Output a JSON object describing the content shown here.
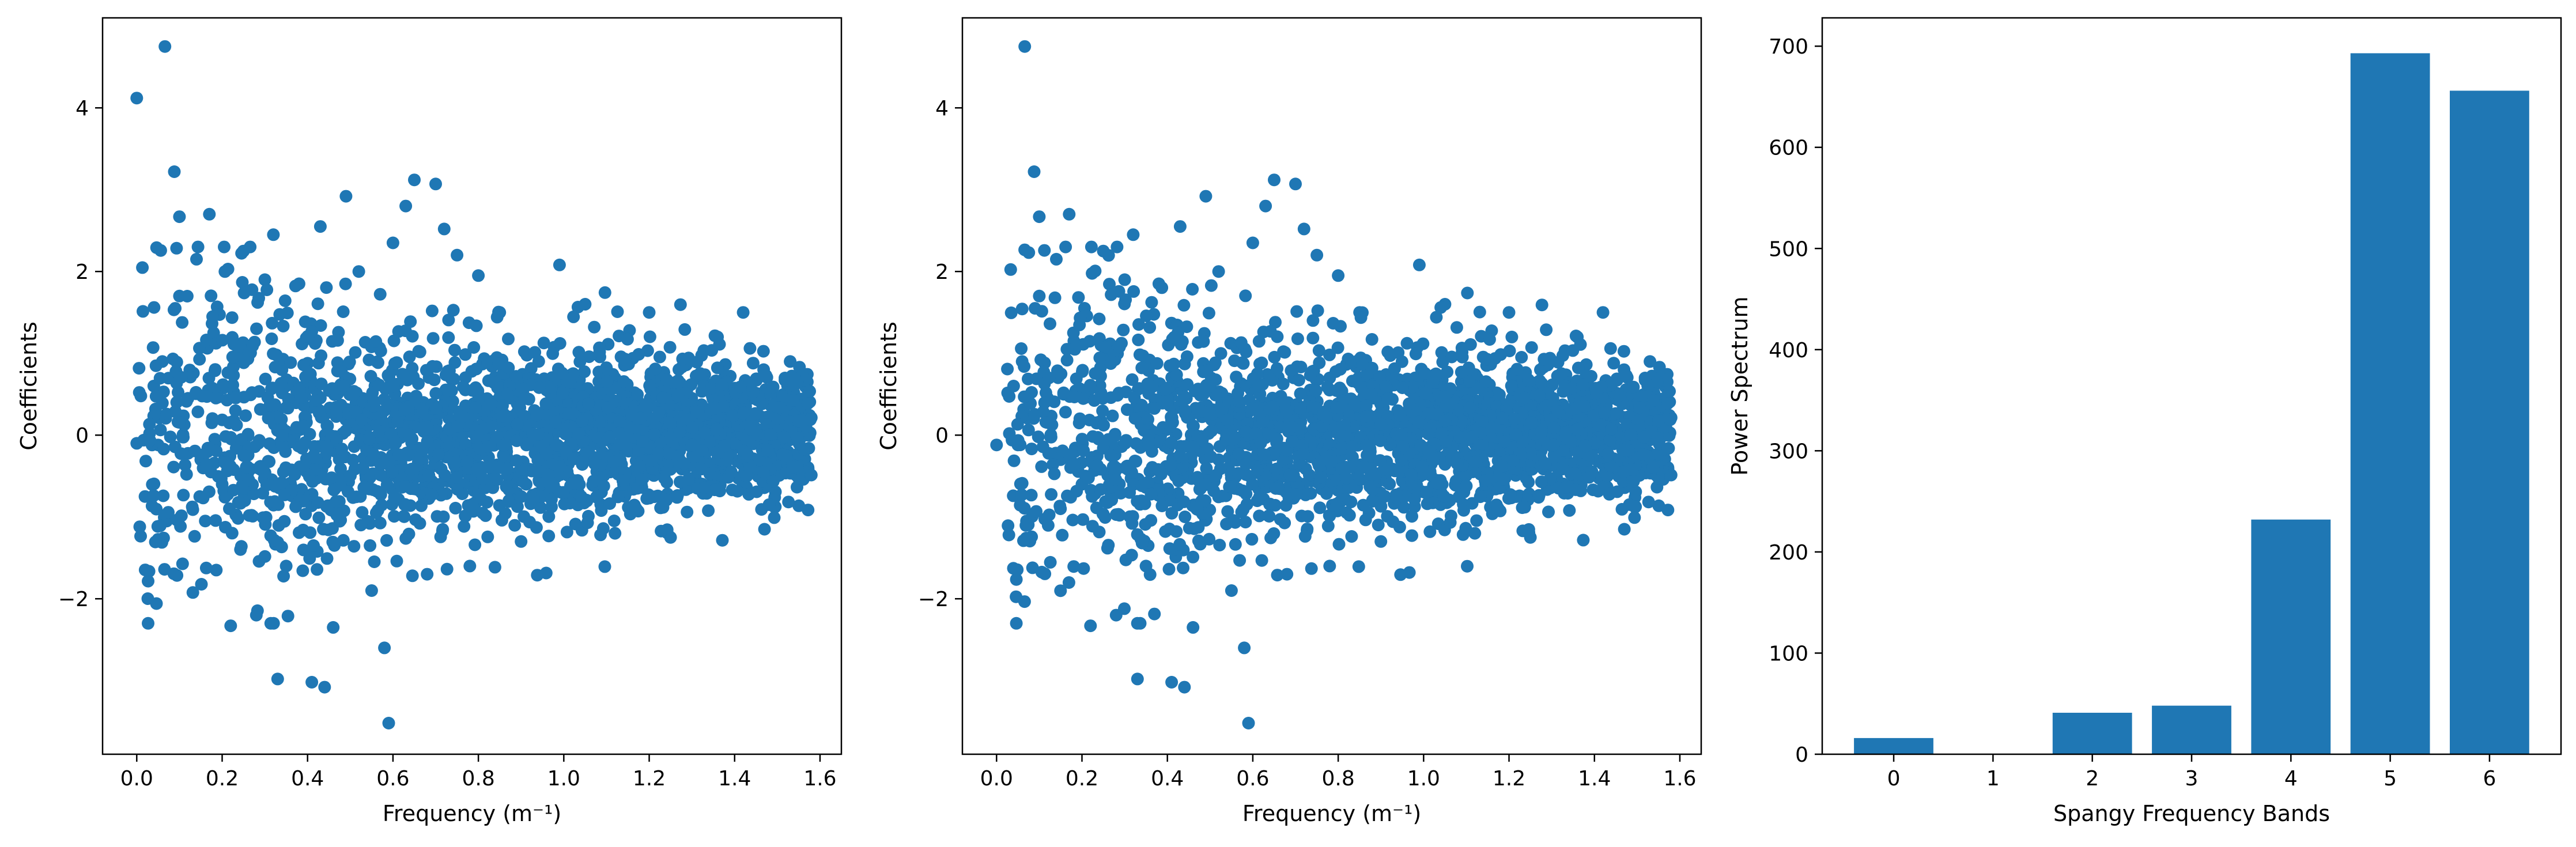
{
  "figure": {
    "background": "#ffffff",
    "marker_color": "#1f77b4",
    "bar_color": "#1f77b4"
  },
  "chart_data": [
    {
      "type": "scatter",
      "xlabel": "Frequency (m⁻¹)",
      "ylabel": "Coefficients",
      "xlim": [
        -0.08,
        1.65
      ],
      "ylim": [
        -3.9,
        5.1
      ],
      "xticks": [
        0.0,
        0.2,
        0.4,
        0.6,
        0.8,
        1.0,
        1.2,
        1.4,
        1.6
      ],
      "xtick_labels": [
        "0.0",
        "0.2",
        "0.4",
        "0.6",
        "0.8",
        "1.0",
        "1.2",
        "1.4",
        "1.6"
      ],
      "yticks": [
        -2,
        0,
        2,
        4
      ],
      "ytick_labels": [
        "−2",
        "0",
        "2",
        "4"
      ],
      "grid": false,
      "points": [
        [
          0.0,
          4.12
        ],
        [
          0.066,
          4.75
        ],
        [
          0.088,
          3.22
        ],
        [
          0.1,
          2.67
        ],
        [
          0.17,
          2.7
        ],
        [
          0.49,
          2.92
        ],
        [
          0.43,
          2.55
        ],
        [
          0.65,
          3.12
        ],
        [
          0.7,
          3.07
        ],
        [
          0.72,
          2.52
        ],
        [
          0.99,
          2.08
        ],
        [
          0.8,
          1.95
        ],
        [
          0.33,
          -2.98
        ],
        [
          0.41,
          -3.02
        ],
        [
          0.44,
          -3.08
        ],
        [
          0.58,
          -2.6
        ],
        [
          0.59,
          -3.52
        ],
        [
          0.22,
          -2.33
        ],
        [
          0.0,
          -0.1
        ],
        [
          0.03,
          0.02
        ],
        [
          0.04,
          0.6
        ],
        [
          0.05,
          -0.12
        ],
        [
          0.06,
          0.9
        ],
        [
          0.07,
          -1.05
        ],
        [
          0.09,
          1.55
        ],
        [
          0.1,
          1.7
        ],
        [
          0.12,
          0.45
        ],
        [
          0.14,
          2.15
        ],
        [
          0.15,
          -0.3
        ],
        [
          0.18,
          1.25
        ],
        [
          0.2,
          -0.6
        ],
        [
          0.25,
          2.25
        ],
        [
          0.28,
          -2.2
        ],
        [
          0.3,
          1.9
        ],
        [
          0.32,
          2.45
        ],
        [
          0.35,
          -1.6
        ],
        [
          0.38,
          1.85
        ],
        [
          0.46,
          -2.35
        ],
        [
          0.52,
          2.0
        ],
        [
          0.55,
          -1.9
        ],
        [
          0.6,
          2.35
        ],
        [
          0.63,
          2.8
        ],
        [
          0.68,
          -1.7
        ],
        [
          0.75,
          2.2
        ],
        [
          0.78,
          -1.6
        ],
        [
          0.85,
          1.5
        ],
        [
          0.9,
          -1.3
        ],
        [
          1.05,
          1.6
        ],
        [
          1.12,
          -1.2
        ],
        [
          1.2,
          1.5
        ],
        [
          1.25,
          -1.25
        ],
        [
          1.36,
          1.2
        ],
        [
          1.42,
          1.5
        ],
        [
          1.47,
          -1.15
        ],
        [
          1.53,
          0.9
        ]
      ],
      "cloud": {
        "n": 2400,
        "x_min": 0.0,
        "x_max": 1.58,
        "seed": 7
      }
    },
    {
      "type": "scatter",
      "xlabel": "Frequency (m⁻¹)",
      "ylabel": "Coefficients",
      "xlim": [
        -0.08,
        1.65
      ],
      "ylim": [
        -3.9,
        5.1
      ],
      "xticks": [
        0.0,
        0.2,
        0.4,
        0.6,
        0.8,
        1.0,
        1.2,
        1.4,
        1.6
      ],
      "xtick_labels": [
        "0.0",
        "0.2",
        "0.4",
        "0.6",
        "0.8",
        "1.0",
        "1.2",
        "1.4",
        "1.6"
      ],
      "yticks": [
        -2,
        0,
        2,
        4
      ],
      "ytick_labels": [
        "−2",
        "0",
        "2",
        "4"
      ],
      "grid": false,
      "points": [
        [
          0.066,
          4.75
        ],
        [
          0.088,
          3.22
        ],
        [
          0.1,
          2.67
        ],
        [
          0.17,
          2.7
        ],
        [
          0.49,
          2.92
        ],
        [
          0.43,
          2.55
        ],
        [
          0.65,
          3.12
        ],
        [
          0.7,
          3.07
        ],
        [
          0.72,
          2.52
        ],
        [
          0.99,
          2.08
        ],
        [
          0.8,
          1.95
        ],
        [
          0.33,
          -2.98
        ],
        [
          0.41,
          -3.02
        ],
        [
          0.44,
          -3.08
        ],
        [
          0.58,
          -2.6
        ],
        [
          0.59,
          -3.52
        ],
        [
          0.22,
          -2.33
        ],
        [
          0.0,
          -0.12
        ],
        [
          0.03,
          0.02
        ],
        [
          0.04,
          0.6
        ],
        [
          0.05,
          -0.12
        ],
        [
          0.06,
          0.9
        ],
        [
          0.07,
          -1.05
        ],
        [
          0.09,
          1.55
        ],
        [
          0.1,
          1.7
        ],
        [
          0.12,
          0.45
        ],
        [
          0.14,
          2.15
        ],
        [
          0.15,
          -0.3
        ],
        [
          0.18,
          1.25
        ],
        [
          0.2,
          -0.6
        ],
        [
          0.25,
          2.25
        ],
        [
          0.28,
          -2.2
        ],
        [
          0.3,
          1.9
        ],
        [
          0.32,
          2.45
        ],
        [
          0.35,
          -1.6
        ],
        [
          0.38,
          1.85
        ],
        [
          0.46,
          -2.35
        ],
        [
          0.52,
          2.0
        ],
        [
          0.55,
          -1.9
        ],
        [
          0.6,
          2.35
        ],
        [
          0.63,
          2.8
        ],
        [
          0.68,
          -1.7
        ],
        [
          0.75,
          2.2
        ],
        [
          0.78,
          -1.6
        ],
        [
          0.85,
          1.5
        ],
        [
          0.9,
          -1.3
        ],
        [
          1.05,
          1.6
        ],
        [
          1.12,
          -1.2
        ],
        [
          1.2,
          1.5
        ],
        [
          1.25,
          -1.25
        ],
        [
          1.36,
          1.2
        ],
        [
          1.42,
          1.5
        ],
        [
          1.47,
          -1.15
        ],
        [
          1.53,
          0.9
        ]
      ],
      "cloud": {
        "n": 2400,
        "x_min": 0.02,
        "x_max": 1.58,
        "seed": 7
      }
    },
    {
      "type": "bar",
      "xlabel": "Spangy Frequency Bands",
      "ylabel": "Power Spectrum",
      "categories": [
        "0",
        "1",
        "2",
        "3",
        "4",
        "5",
        "6"
      ],
      "values": [
        16,
        0,
        41,
        48,
        232,
        693,
        656
      ],
      "xlim": [
        -0.72,
        6.72
      ],
      "ylim": [
        0,
        728
      ],
      "yticks": [
        0,
        100,
        200,
        300,
        400,
        500,
        600,
        700
      ],
      "ytick_labels": [
        "0",
        "100",
        "200",
        "300",
        "400",
        "500",
        "600",
        "700"
      ],
      "grid": false
    }
  ]
}
